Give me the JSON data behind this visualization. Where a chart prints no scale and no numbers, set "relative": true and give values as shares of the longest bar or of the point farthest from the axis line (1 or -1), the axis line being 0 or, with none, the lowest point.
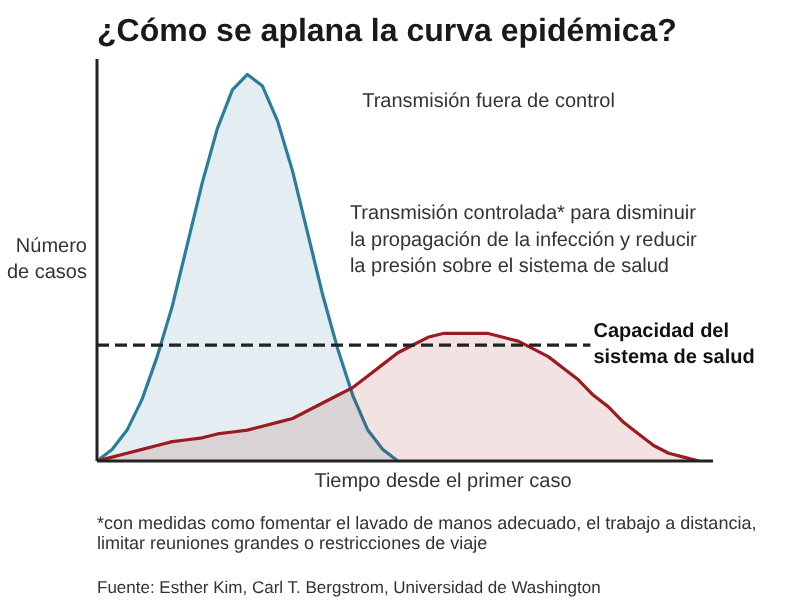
{
  "chart_data": {
    "type": "area",
    "title": "¿Cómo se aplana la curva epidémica?",
    "xlabel": "Tiempo desde el primer caso",
    "ylabel": "Número\nde casos",
    "relative": true,
    "categories": [
      null,
      null,
      null,
      null,
      null,
      null,
      null,
      null,
      null,
      null,
      null,
      null,
      null,
      null,
      null,
      null,
      null,
      null,
      null,
      null,
      null,
      null,
      null,
      null,
      null,
      null,
      null,
      null,
      null,
      null,
      null,
      null,
      null,
      null,
      null,
      null,
      null,
      null,
      null,
      null,
      null
    ],
    "series": [
      {
        "color": "#2b7d9b",
        "values": [
          0.0,
          0.03,
          0.08,
          0.16,
          0.27,
          0.4,
          0.56,
          0.72,
          0.86,
          0.96,
          1.0,
          0.97,
          0.88,
          0.75,
          0.59,
          0.43,
          0.29,
          0.17,
          0.08,
          0.03,
          0.0,
          null,
          null,
          null,
          null,
          null,
          null,
          null,
          null,
          null,
          null,
          null,
          null,
          null,
          null,
          null,
          null,
          null,
          null,
          null,
          null
        ]
      },
      {
        "color": "#9b1c20",
        "values": [
          0.0,
          0.01,
          0.02,
          0.03,
          0.04,
          0.05,
          0.055,
          0.06,
          0.07,
          0.075,
          0.08,
          0.09,
          0.1,
          0.11,
          0.13,
          0.15,
          0.17,
          0.19,
          0.22,
          0.25,
          0.28,
          0.3,
          0.32,
          0.33,
          0.33,
          0.33,
          0.33,
          0.32,
          0.31,
          0.29,
          0.27,
          0.24,
          0.21,
          0.17,
          0.14,
          0.1,
          0.07,
          0.04,
          0.02,
          0.01,
          0.0
        ]
      }
    ],
    "ref_lines": [
      {
        "axis": "y",
        "value": 0.3,
        "label": "Capacidad del\nsistema de salud",
        "color": "#222222",
        "line_style": "dashed"
      }
    ],
    "annotations": [
      "Transmisión fuera de control",
      "Transmisión controlada* para disminuir\nla propagación de la infección y reducir\nla presión sobre el sistema de salud",
      "*con medidas como fomentar el lavado de manos adecuado, el trabajo a distancia,\nlimitar reuniones grandes o restricciones de viaje",
      "Fuente: Esther Kim, Carl T. Bergstrom, Universidad de Washington"
    ],
    "legend": false
  }
}
